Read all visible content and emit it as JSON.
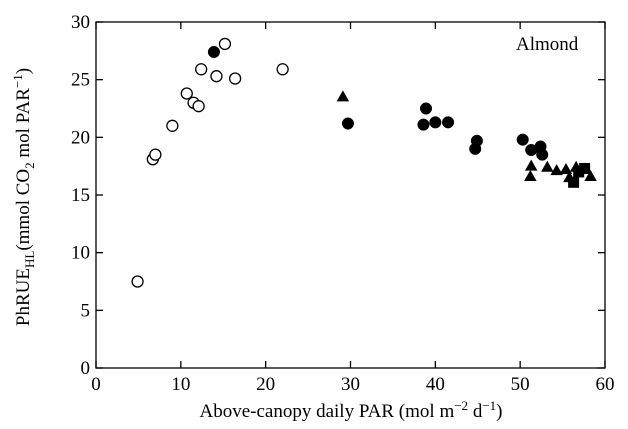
{
  "chart_data": {
    "type": "scatter",
    "title": "",
    "annotation": "Almond",
    "xlabel": {
      "prefix": "Above-canopy daily PAR (mol m",
      "sup1": "−2",
      "middle": " d",
      "sup2": "−1",
      "suffix": ")"
    },
    "ylabel": {
      "prefix": "PhRUE",
      "sub": "HL",
      "middle": "(mmol CO",
      "sub2": "2",
      "middle2": " mol PAR",
      "sup": "−1",
      "suffix": ")"
    },
    "xlim": [
      0,
      60
    ],
    "ylim": [
      0,
      30
    ],
    "xticks": [
      "0",
      "10",
      "20",
      "30",
      "40",
      "50",
      "60"
    ],
    "yticks": [
      "0",
      "5",
      "10",
      "15",
      "20",
      "25",
      "30"
    ],
    "grid": false,
    "legend": "none",
    "series": [
      {
        "marker": "open-circle",
        "points": [
          [
            4.9,
            7.5
          ],
          [
            6.7,
            18.1
          ],
          [
            7.0,
            18.5
          ],
          [
            9.0,
            21.0
          ],
          [
            10.7,
            23.8
          ],
          [
            11.5,
            23.0
          ],
          [
            12.1,
            22.7
          ],
          [
            12.4,
            25.9
          ],
          [
            14.2,
            25.3
          ],
          [
            15.2,
            28.1
          ],
          [
            16.4,
            25.1
          ],
          [
            22.0,
            25.9
          ]
        ]
      },
      {
        "marker": "filled-circle",
        "points": [
          [
            13.9,
            27.4
          ],
          [
            29.7,
            21.2
          ],
          [
            38.6,
            21.1
          ],
          [
            38.9,
            22.5
          ],
          [
            40.0,
            21.3
          ],
          [
            41.5,
            21.3
          ],
          [
            44.7,
            19.0
          ],
          [
            44.9,
            19.7
          ],
          [
            50.3,
            19.8
          ],
          [
            51.3,
            18.9
          ],
          [
            52.4,
            19.2
          ],
          [
            52.6,
            18.5
          ]
        ]
      },
      {
        "marker": "filled-triangle",
        "points": [
          [
            29.1,
            23.5
          ],
          [
            51.2,
            16.6
          ],
          [
            51.3,
            17.5
          ],
          [
            53.2,
            17.4
          ],
          [
            54.3,
            17.1
          ],
          [
            55.4,
            17.2
          ],
          [
            55.8,
            16.5
          ],
          [
            56.6,
            17.4
          ],
          [
            58.3,
            16.6
          ]
        ]
      },
      {
        "marker": "filled-square",
        "points": [
          [
            56.3,
            16.1
          ],
          [
            56.9,
            17.0
          ],
          [
            57.6,
            17.3
          ]
        ]
      }
    ]
  },
  "colors": {
    "ink": "#000000",
    "background": "#ffffff"
  }
}
